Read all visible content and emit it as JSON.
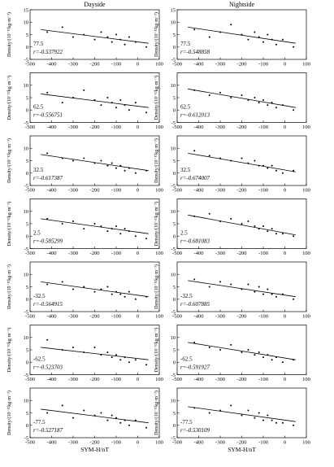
{
  "chart_data": [
    {
      "type": "scatter",
      "title": "Dayside",
      "annotations": [
        "77.5",
        "r=-0.537922"
      ],
      "ylabel": "Density/(10⁻¹²kg·m⁻³)",
      "xlim": [
        -500,
        100
      ],
      "ylim": [
        -5,
        15
      ],
      "xticks": [
        -500,
        -400,
        -300,
        -200,
        -100,
        0,
        100
      ],
      "yticks": [
        -5,
        0,
        5,
        10,
        15
      ],
      "x": [
        -420,
        -350,
        -300,
        -250,
        -200,
        -170,
        -140,
        -120,
        -100,
        -80,
        -60,
        -40,
        -10,
        40
      ],
      "values": [
        6,
        8,
        4,
        5,
        3,
        6,
        4,
        2,
        5,
        3,
        1,
        4,
        2,
        0
      ],
      "fit": {
        "x": [
          -450,
          50
        ],
        "y": [
          7,
          1.5
        ]
      }
    },
    {
      "type": "scatter",
      "title": "Nightside",
      "annotations": [
        "77.5",
        "r=-0.548858"
      ],
      "ylabel": "Density/(10⁻¹²kg·m⁻³)",
      "xlim": [
        -500,
        100
      ],
      "ylim": [
        -5,
        15
      ],
      "xticks": [
        -500,
        -400,
        -300,
        -200,
        -100,
        0,
        100
      ],
      "yticks": [
        -5,
        0,
        5,
        10,
        15
      ],
      "x": [
        -420,
        -350,
        -300,
        -250,
        -200,
        -170,
        -140,
        -120,
        -100,
        -80,
        -60,
        -40,
        -10,
        40
      ],
      "values": [
        7,
        4,
        6,
        9,
        5,
        3,
        6,
        4,
        2,
        5,
        3,
        1,
        3,
        0
      ],
      "fit": {
        "x": [
          -450,
          50
        ],
        "y": [
          8,
          1.5
        ]
      }
    },
    {
      "type": "scatter",
      "annotations": [
        "62.5",
        "r=-0.556751"
      ],
      "ylabel": "Density/(10⁻¹²kg·m⁻³)",
      "xlim": [
        -500,
        100
      ],
      "ylim": [
        -5,
        15
      ],
      "xticks": [
        -500,
        -400,
        -300,
        -200,
        -100,
        0,
        100
      ],
      "yticks": [
        -5,
        0,
        5,
        10
      ],
      "x": [
        -420,
        -350,
        -300,
        -250,
        -200,
        -170,
        -140,
        -120,
        -100,
        -80,
        -60,
        -40,
        -10,
        40
      ],
      "values": [
        7,
        3,
        5,
        8,
        4,
        2,
        5,
        3,
        1,
        4,
        2,
        0,
        3,
        -1
      ],
      "fit": {
        "x": [
          -450,
          50
        ],
        "y": [
          6.5,
          1
        ]
      }
    },
    {
      "type": "scatter",
      "annotations": [
        "62.5",
        "r=-0.612013"
      ],
      "ylabel": "Density/(10⁻¹²kg·m⁻³)",
      "xlim": [
        -500,
        100
      ],
      "ylim": [
        -5,
        15
      ],
      "xticks": [
        -500,
        -400,
        -300,
        -200,
        -100,
        0,
        100
      ],
      "yticks": [
        -5,
        0,
        5,
        10
      ],
      "x": [
        -420,
        -350,
        -300,
        -250,
        -200,
        -170,
        -140,
        -120,
        -100,
        -80,
        -60,
        -40,
        -10,
        40
      ],
      "values": [
        8,
        6,
        7,
        5,
        6,
        4,
        5,
        3,
        4,
        2,
        3,
        1,
        2,
        0
      ],
      "fit": {
        "x": [
          -450,
          50
        ],
        "y": [
          8.5,
          1
        ]
      }
    },
    {
      "type": "scatter",
      "annotations": [
        "32.5",
        "r=-0.617387"
      ],
      "ylabel": "Density/(10⁻¹²kg·m⁻³)",
      "xlim": [
        -500,
        100
      ],
      "ylim": [
        -5,
        15
      ],
      "xticks": [
        -500,
        -400,
        -300,
        -200,
        -100,
        0,
        100
      ],
      "yticks": [
        -5,
        0,
        5,
        10
      ],
      "x": [
        -420,
        -350,
        -300,
        -250,
        -200,
        -170,
        -140,
        -120,
        -100,
        -80,
        -60,
        -40,
        -10,
        40
      ],
      "values": [
        8,
        6,
        5,
        6,
        4,
        5,
        3,
        4,
        2,
        3,
        1,
        2,
        0,
        1
      ],
      "fit": {
        "x": [
          -450,
          50
        ],
        "y": [
          7.5,
          1
        ]
      }
    },
    {
      "type": "scatter",
      "annotations": [
        "32.5",
        "r=-0.674007"
      ],
      "ylabel": "Density/(10⁻¹²kg·m⁻³)",
      "xlim": [
        -500,
        100
      ],
      "ylim": [
        -5,
        15
      ],
      "xticks": [
        -500,
        -400,
        -300,
        -200,
        -100,
        0,
        100
      ],
      "yticks": [
        -5,
        0,
        5,
        10
      ],
      "x": [
        -420,
        -350,
        -300,
        -250,
        -200,
        -170,
        -140,
        -120,
        -100,
        -80,
        -60,
        -40,
        -10,
        40
      ],
      "values": [
        9,
        7,
        6,
        5,
        6,
        4,
        5,
        3,
        3,
        2,
        3,
        1,
        0,
        1
      ],
      "fit": {
        "x": [
          -450,
          50
        ],
        "y": [
          8,
          0.5
        ]
      }
    },
    {
      "type": "scatter",
      "annotations": [
        "2.5",
        "r=-0.585299"
      ],
      "ylabel": "Density/(10⁻¹²kg·m⁻³)",
      "xlim": [
        -500,
        100
      ],
      "ylim": [
        -5,
        15
      ],
      "xticks": [
        -500,
        -400,
        -300,
        -200,
        -100,
        0,
        100
      ],
      "yticks": [
        -5,
        0,
        5,
        10
      ],
      "x": [
        -420,
        -350,
        -300,
        -250,
        -200,
        -170,
        -140,
        -120,
        -100,
        -80,
        -60,
        -40,
        -10,
        40
      ],
      "values": [
        7,
        5,
        6,
        3,
        5,
        4,
        2,
        3,
        4,
        1,
        3,
        2,
        0,
        -1
      ],
      "fit": {
        "x": [
          -450,
          50
        ],
        "y": [
          7,
          1
        ]
      }
    },
    {
      "type": "scatter",
      "annotations": [
        "2.5",
        "r=-0.681083"
      ],
      "ylabel": "Density/(10⁻¹²kg·m⁻³)",
      "xlim": [
        -500,
        100
      ],
      "ylim": [
        -5,
        15
      ],
      "xticks": [
        -500,
        -400,
        -300,
        -200,
        -100,
        0,
        100
      ],
      "yticks": [
        -5,
        0,
        5,
        10
      ],
      "x": [
        -420,
        -350,
        -300,
        -250,
        -200,
        -170,
        -140,
        -120,
        -100,
        -80,
        -60,
        -40,
        -10,
        40
      ],
      "values": [
        8,
        9,
        6,
        7,
        5,
        6,
        4,
        3,
        4,
        2,
        3,
        1,
        1,
        0
      ],
      "fit": {
        "x": [
          -450,
          50
        ],
        "y": [
          8.5,
          0.5
        ]
      }
    },
    {
      "type": "scatter",
      "annotations": [
        "-32.5",
        "r=-0.564915"
      ],
      "ylabel": "Density/(10⁻¹²kg·m⁻³)",
      "xlim": [
        -500,
        100
      ],
      "ylim": [
        -5,
        15
      ],
      "xticks": [
        -500,
        -400,
        -300,
        -200,
        -100,
        0,
        100
      ],
      "yticks": [
        -5,
        0,
        5,
        10
      ],
      "x": [
        -420,
        -350,
        -300,
        -250,
        -200,
        -170,
        -140,
        -120,
        -100,
        -80,
        -60,
        -40,
        -10,
        40
      ],
      "values": [
        6,
        7,
        4,
        5,
        3,
        4,
        5,
        2,
        3,
        2,
        1,
        3,
        0,
        1
      ],
      "fit": {
        "x": [
          -450,
          50
        ],
        "y": [
          7,
          1
        ]
      }
    },
    {
      "type": "scatter",
      "annotations": [
        "-32.5",
        "r=-0.607885"
      ],
      "ylabel": "Density/(10⁻¹²kg·m⁻³)",
      "xlim": [
        -500,
        100
      ],
      "ylim": [
        -5,
        15
      ],
      "xticks": [
        -500,
        -400,
        -300,
        -200,
        -100,
        0,
        100
      ],
      "yticks": [
        -5,
        0,
        5,
        10
      ],
      "x": [
        -420,
        -350,
        -300,
        -250,
        -200,
        -170,
        -140,
        -120,
        -100,
        -80,
        -60,
        -40,
        -10,
        40
      ],
      "values": [
        8,
        5,
        7,
        6,
        4,
        6,
        3,
        5,
        2,
        4,
        2,
        1,
        2,
        0
      ],
      "fit": {
        "x": [
          -450,
          50
        ],
        "y": [
          7.5,
          1
        ]
      }
    },
    {
      "type": "scatter",
      "annotations": [
        "-62.5",
        "r=-0.523703"
      ],
      "ylabel": "Density/(10⁻¹²kg·m⁻³)",
      "xlim": [
        -500,
        100
      ],
      "ylim": [
        -5,
        15
      ],
      "xticks": [
        -500,
        -400,
        -300,
        -200,
        -100,
        0,
        100
      ],
      "yticks": [
        -5,
        0,
        5,
        10
      ],
      "x": [
        -420,
        -350,
        -300,
        -250,
        -200,
        -170,
        -140,
        -120,
        -100,
        -80,
        -60,
        -40,
        -10,
        40
      ],
      "values": [
        9,
        5,
        6,
        4,
        6,
        3,
        4,
        2,
        3,
        1,
        2,
        0,
        1,
        -1
      ],
      "fit": {
        "x": [
          -450,
          50
        ],
        "y": [
          6,
          1
        ]
      }
    },
    {
      "type": "scatter",
      "annotations": [
        "-62.5",
        "r=-0.591927"
      ],
      "ylabel": "Density/(10⁻¹²kg·m⁻³)",
      "xlim": [
        -500,
        100
      ],
      "ylim": [
        -5,
        15
      ],
      "xticks": [
        -500,
        -400,
        -300,
        -200,
        -100,
        0,
        100
      ],
      "yticks": [
        -5,
        0,
        5,
        10
      ],
      "x": [
        -420,
        -350,
        -300,
        -250,
        -200,
        -170,
        -140,
        -120,
        -100,
        -80,
        -60,
        -40,
        -10,
        40
      ],
      "values": [
        8,
        6,
        5,
        7,
        4,
        5,
        3,
        4,
        2,
        3,
        1,
        2,
        0,
        1
      ],
      "fit": {
        "x": [
          -450,
          50
        ],
        "y": [
          8,
          1
        ]
      }
    },
    {
      "type": "scatter",
      "annotations": [
        "-77.5",
        "r=-0.527187"
      ],
      "ylabel": "Density/(10⁻¹²kg·m⁻³)",
      "xlabel": "SYM-H/nT",
      "xlim": [
        -500,
        100
      ],
      "ylim": [
        -5,
        15
      ],
      "xticks": [
        -500,
        -400,
        -300,
        -200,
        -100,
        0,
        100
      ],
      "yticks": [
        -5,
        0,
        5,
        10
      ],
      "x": [
        -420,
        -350,
        -300,
        -250,
        -200,
        -170,
        -140,
        -120,
        -100,
        -80,
        -60,
        -40,
        -10,
        40
      ],
      "values": [
        5,
        8,
        3,
        6,
        4,
        5,
        2,
        4,
        3,
        1,
        2,
        0,
        2,
        -1
      ],
      "fit": {
        "x": [
          -450,
          50
        ],
        "y": [
          6.5,
          1
        ]
      }
    },
    {
      "type": "scatter",
      "annotations": [
        "-77.5",
        "r=-0.530109"
      ],
      "ylabel": "Density/(10⁻¹²kg·m⁻³)",
      "xlabel": "SYM-H/nT",
      "xlim": [
        -500,
        100
      ],
      "ylim": [
        -5,
        15
      ],
      "xticks": [
        -500,
        -400,
        -300,
        -200,
        -100,
        0,
        100
      ],
      "yticks": [
        -5,
        0,
        5,
        10
      ],
      "x": [
        -420,
        -350,
        -300,
        -250,
        -200,
        -170,
        -140,
        -120,
        -100,
        -80,
        -60,
        -40,
        -10,
        40
      ],
      "values": [
        7,
        5,
        6,
        8,
        4,
        6,
        3,
        5,
        2,
        4,
        2,
        1,
        1,
        0
      ],
      "fit": {
        "x": [
          -450,
          50
        ],
        "y": [
          7.5,
          1.5
        ]
      }
    }
  ]
}
